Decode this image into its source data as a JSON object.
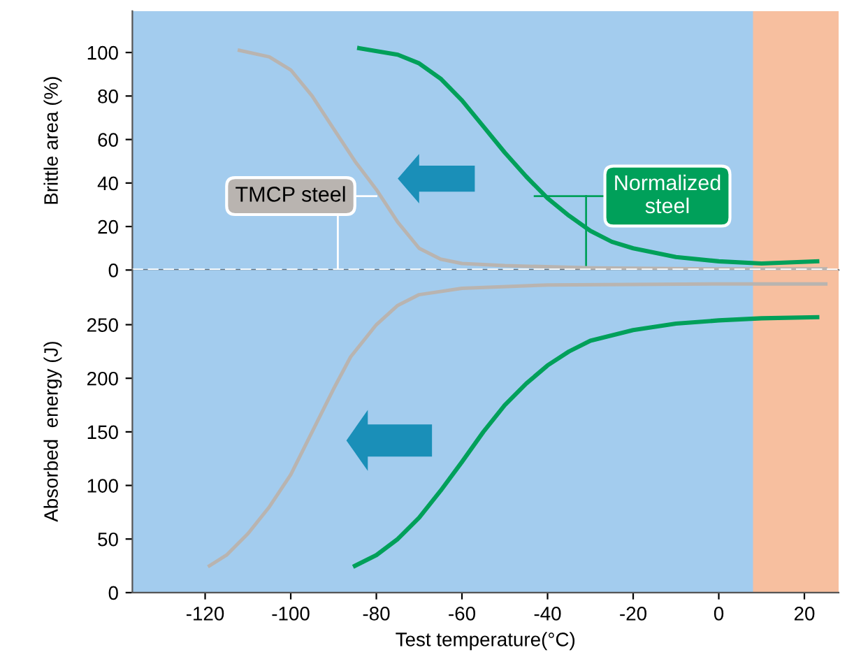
{
  "chart_data": [
    {
      "type": "line",
      "ylabel": "Brittle area (%)",
      "xlim": [
        -137,
        28
      ],
      "ylim": [
        0,
        119
      ],
      "yticks": [
        0,
        20,
        40,
        60,
        80,
        100
      ],
      "tick_labels": "y",
      "grid": false,
      "marker": "none",
      "line_style": "solid",
      "ref_lines": [
        {
          "axis": "y",
          "value": 0,
          "color": "#ffffff",
          "line_style": "dashed"
        }
      ],
      "bands": [
        {
          "axis": "x",
          "from": 8,
          "to": 28,
          "color": "#f7bf9f"
        }
      ],
      "series": [
        {
          "name": "TMCP steel",
          "color": "#b9b4b0",
          "x": [
            -112,
            -105,
            -100,
            -95,
            -90,
            -85,
            -80,
            -75,
            -70,
            -65,
            -60,
            -50,
            -30,
            0,
            25
          ],
          "values": [
            101,
            98,
            92,
            80,
            65,
            50,
            37,
            22,
            10,
            5,
            3,
            2,
            1,
            0.5,
            0.5
          ]
        },
        {
          "name": "Normalized steel",
          "color": "#00a05a",
          "x": [
            -84,
            -75,
            -70,
            -65,
            -60,
            -55,
            -50,
            -45,
            -40,
            -35,
            -30,
            -25,
            -20,
            -10,
            0,
            10,
            23
          ],
          "values": [
            102,
            99,
            95,
            88,
            78,
            66,
            54,
            43,
            33,
            25,
            18,
            13,
            10,
            6,
            4,
            3,
            4
          ]
        }
      ]
    },
    {
      "type": "line",
      "xlabel": "Test temperature(°C)",
      "ylabel": "Absorbed  energy (J)",
      "xlim": [
        -137,
        28
      ],
      "ylim": [
        0,
        301
      ],
      "xticks": [
        -120,
        -100,
        -80,
        -60,
        -40,
        -20,
        0,
        20
      ],
      "yticks": [
        0,
        50,
        100,
        150,
        200,
        250
      ],
      "grid": false,
      "marker": "none",
      "line_style": "solid",
      "bands": [
        {
          "axis": "x",
          "from": 8,
          "to": 28,
          "color": "#f7bf9f"
        }
      ],
      "series": [
        {
          "color": "#b9b4b0",
          "x": [
            -119,
            -115,
            -110,
            -105,
            -100,
            -95,
            -90,
            -86,
            -80,
            -75,
            -70,
            -60,
            -40,
            0,
            25
          ],
          "values": [
            25,
            35,
            55,
            80,
            110,
            150,
            190,
            220,
            250,
            268,
            278,
            284,
            287,
            288,
            288
          ]
        },
        {
          "color": "#00a05a",
          "x": [
            -85,
            -80,
            -75,
            -70,
            -65,
            -60,
            -55,
            -50,
            -45,
            -40,
            -35,
            -30,
            -20,
            -10,
            0,
            10,
            23
          ],
          "values": [
            25,
            35,
            50,
            70,
            95,
            122,
            150,
            175,
            195,
            212,
            225,
            235,
            245,
            251,
            254,
            256,
            257
          ]
        }
      ]
    }
  ]
}
